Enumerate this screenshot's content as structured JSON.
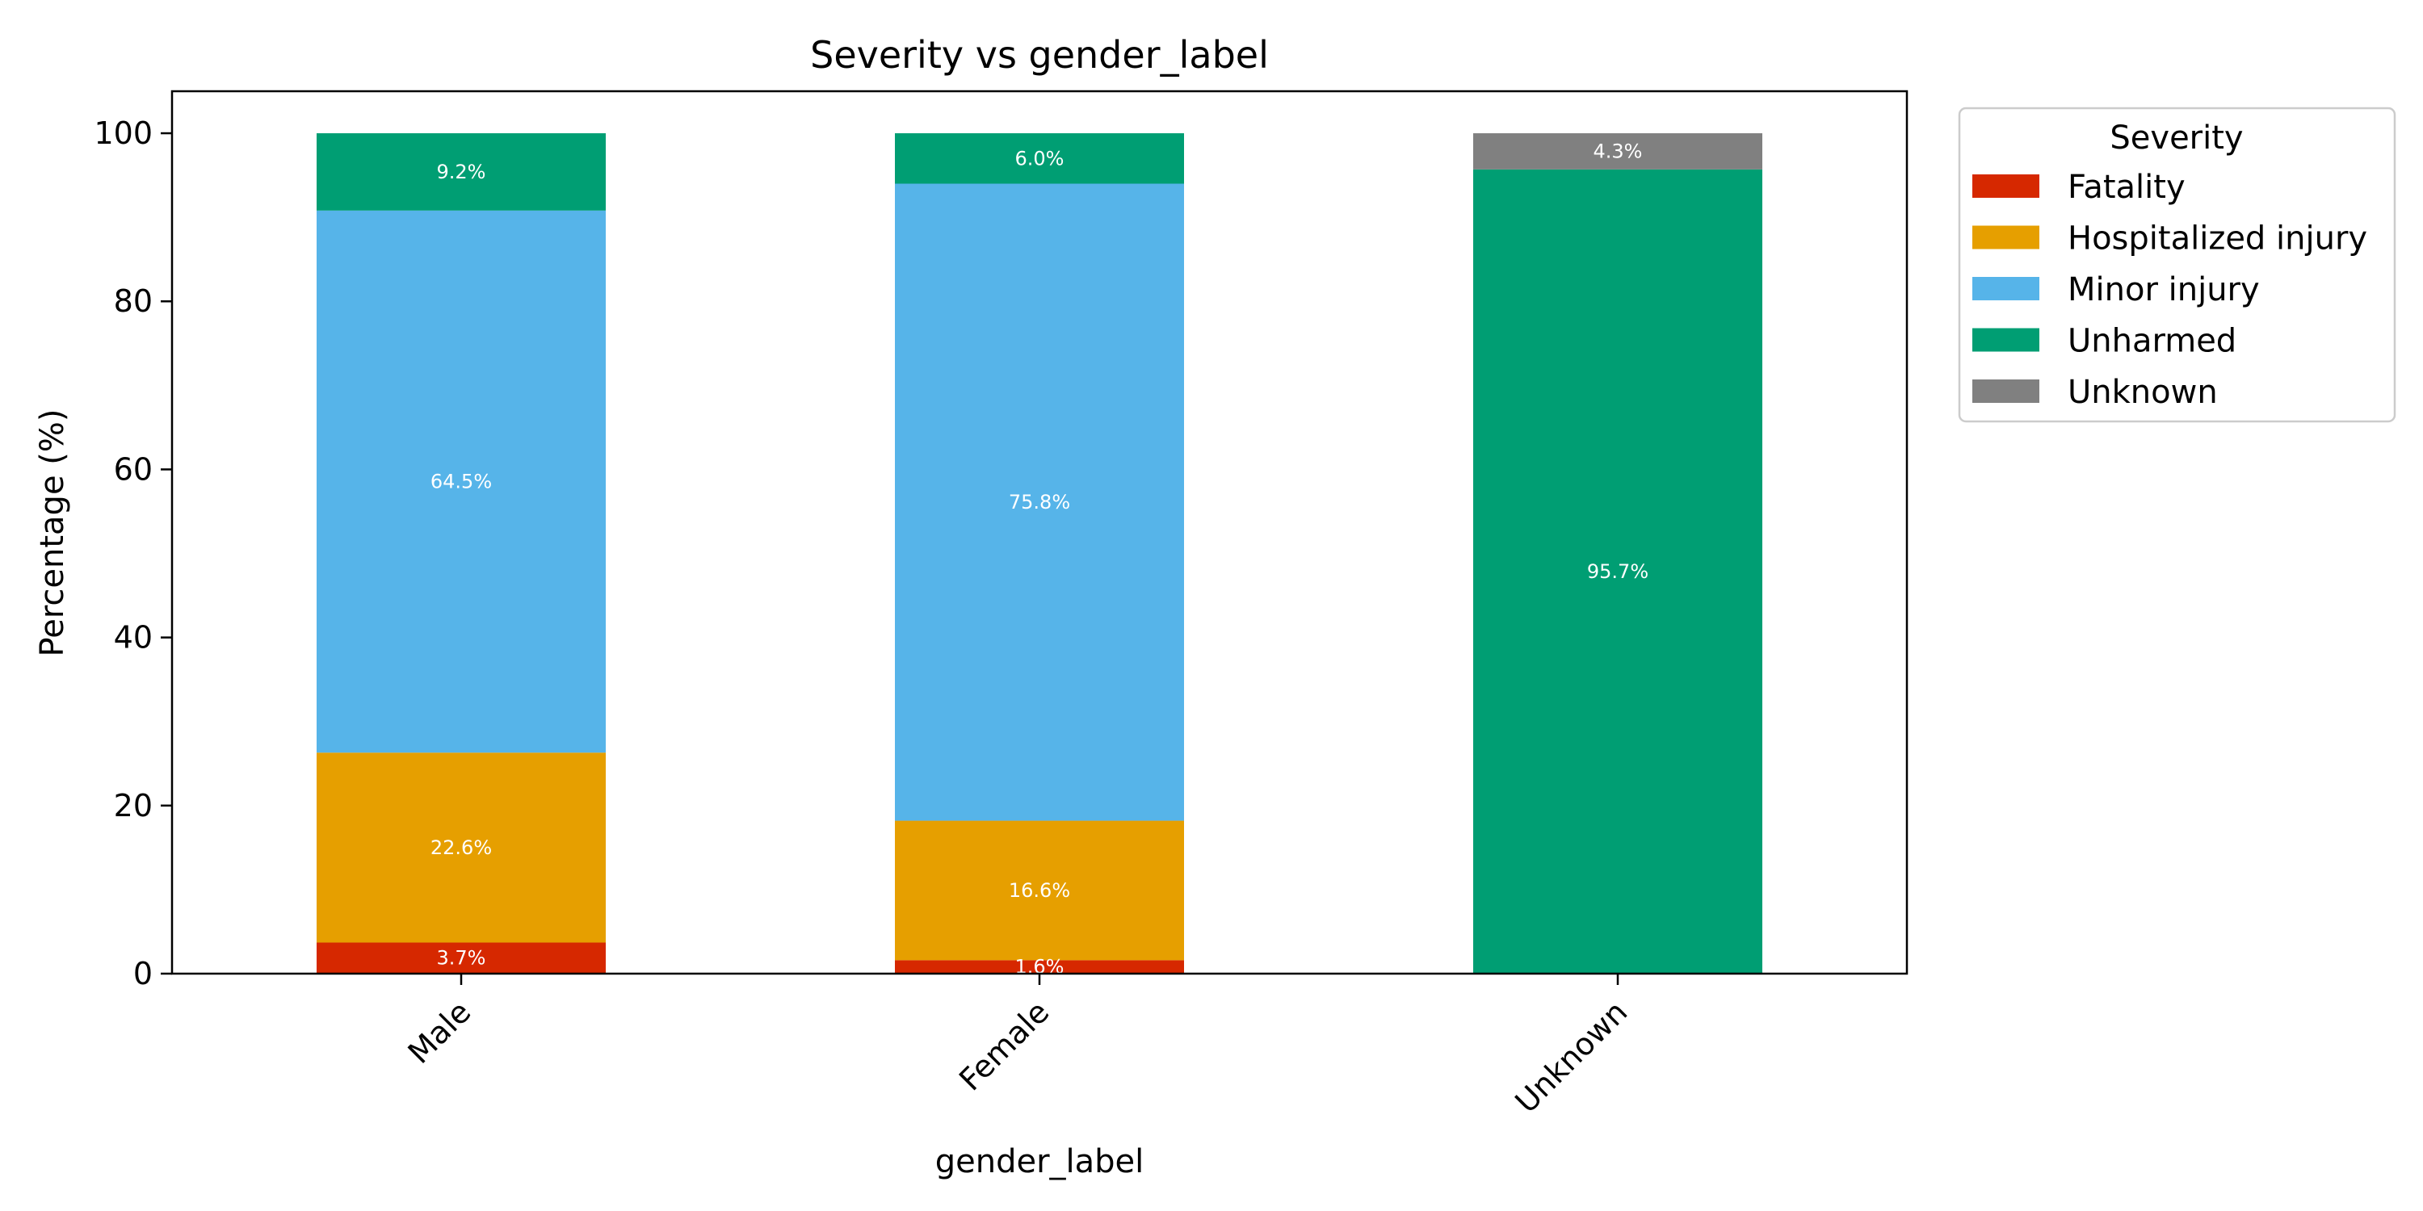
{
  "chart_data": {
    "type": "bar",
    "stacked": true,
    "title": "Severity vs gender_label",
    "xlabel": "gender_label",
    "ylabel": "Percentage (%)",
    "ylim": [
      0,
      105
    ],
    "yticks": [
      0,
      20,
      40,
      60,
      80,
      100
    ],
    "grid": false,
    "categories": [
      "Male",
      "Female",
      "Unknown"
    ],
    "series": [
      {
        "name": "Fatality",
        "color": "#D62800",
        "values": [
          3.7,
          1.6,
          0
        ],
        "labels": [
          "3.7%",
          "1.6%",
          ""
        ]
      },
      {
        "name": "Hospitalized injury",
        "color": "#E69F00",
        "values": [
          22.6,
          16.6,
          0
        ],
        "labels": [
          "22.6%",
          "16.6%",
          ""
        ]
      },
      {
        "name": "Minor injury",
        "color": "#56B4E9",
        "values": [
          64.5,
          75.8,
          0
        ],
        "labels": [
          "64.5%",
          "75.8%",
          ""
        ]
      },
      {
        "name": "Unharmed",
        "color": "#009E73",
        "values": [
          9.2,
          6.0,
          95.7
        ],
        "labels": [
          "9.2%",
          "6.0%",
          "95.7%"
        ]
      },
      {
        "name": "Unknown",
        "color": "#808080",
        "values": [
          0,
          0,
          4.3
        ],
        "labels": [
          "",
          "",
          "4.3%"
        ]
      }
    ],
    "legend": {
      "title": "Severity",
      "placement": "outside-top-right"
    }
  }
}
